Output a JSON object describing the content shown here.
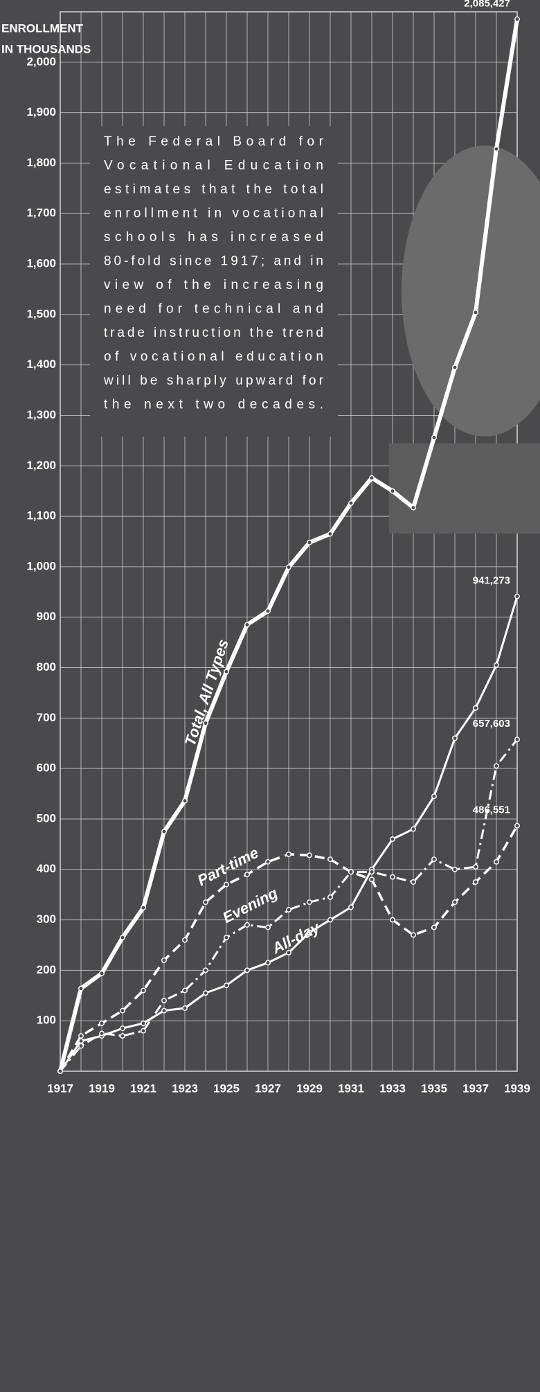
{
  "chart_data": {
    "type": "line",
    "y_label": [
      "ENROLLMENT",
      "IN THOUSANDS"
    ],
    "annotation": [
      "The Federal Board for",
      "Vocational Education",
      "estimates that the total",
      "enrollment in vocational",
      "schools has increased",
      "80-fold since 1917; and in",
      "view of the increasing",
      "need for technical and",
      "trade instruction the trend",
      "of vocational education",
      "will be sharply upward for",
      "the next two decades."
    ],
    "x": [
      1917,
      1918,
      1919,
      1920,
      1921,
      1922,
      1923,
      1924,
      1925,
      1926,
      1927,
      1928,
      1929,
      1930,
      1931,
      1932,
      1933,
      1934,
      1935,
      1936,
      1937,
      1938,
      1939
    ],
    "xlim": [
      1917,
      1939
    ],
    "xticks": [
      1917,
      1919,
      1921,
      1923,
      1925,
      1927,
      1929,
      1931,
      1933,
      1935,
      1937,
      1939
    ],
    "ylim": [
      0,
      2100
    ],
    "yticks": [
      100,
      200,
      300,
      400,
      500,
      600,
      700,
      800,
      900,
      {
        "value": 1000,
        "label": "1,000"
      },
      {
        "value": 1100,
        "label": "1,100"
      },
      {
        "value": 1200,
        "label": "1,200"
      },
      {
        "value": 1300,
        "label": "1,300"
      },
      {
        "value": 1400,
        "label": "1,400"
      },
      {
        "value": 1500,
        "label": "1,500"
      },
      {
        "value": 1600,
        "label": "1,600"
      },
      {
        "value": 1700,
        "label": "1,700"
      },
      {
        "value": 1800,
        "label": "1,800"
      },
      {
        "value": 1900,
        "label": "1,900"
      },
      {
        "value": 2000,
        "label": "2,000"
      }
    ],
    "grid": true,
    "series": [
      {
        "name": "Total, All Types",
        "color": "#ffffff",
        "style": "solid-thick",
        "values": [
          0,
          164,
          194,
          265,
          324,
          475,
          536,
          690,
          792,
          885,
          912,
          999,
          1048,
          1065,
          1126,
          1176,
          1150,
          1117,
          1256,
          1395,
          1504,
          1828,
          2085.427
        ],
        "value_labels": [
          null,
          null,
          null,
          null,
          null,
          null,
          null,
          null,
          null,
          null,
          null,
          null,
          null,
          null,
          null,
          null,
          null,
          null,
          null,
          null,
          null,
          null,
          "2,085,427"
        ]
      },
      {
        "name": "All-day",
        "color": "#ffffff",
        "style": "solid",
        "values": [
          0,
          60,
          70,
          85,
          95,
          120,
          125,
          155,
          170,
          200,
          215,
          235,
          275,
          300,
          325,
          400,
          460,
          480,
          545,
          660,
          720,
          805,
          941.273
        ],
        "value_labels": [
          null,
          null,
          null,
          null,
          null,
          null,
          null,
          null,
          null,
          null,
          null,
          null,
          null,
          null,
          null,
          null,
          null,
          null,
          null,
          null,
          null,
          null,
          "941,273"
        ]
      },
      {
        "name": "Evening",
        "color": "#ffffff",
        "style": "dash-dot",
        "values": [
          0,
          50,
          75,
          70,
          80,
          140,
          160,
          200,
          265,
          290,
          285,
          320,
          335,
          345,
          395,
          395,
          385,
          375,
          420,
          400,
          405,
          605,
          657.603
        ],
        "value_labels": [
          null,
          null,
          null,
          null,
          null,
          null,
          null,
          null,
          null,
          null,
          null,
          null,
          null,
          null,
          null,
          null,
          null,
          null,
          null,
          null,
          null,
          null,
          "657,603"
        ]
      },
      {
        "name": "Part-time",
        "color": "#ffffff",
        "style": "dashed",
        "values": [
          0,
          70,
          95,
          120,
          160,
          220,
          260,
          335,
          370,
          390,
          415,
          430,
          428,
          420,
          395,
          380,
          300,
          270,
          285,
          335,
          375,
          415,
          486.551
        ],
        "value_labels": [
          null,
          null,
          null,
          null,
          null,
          null,
          null,
          null,
          null,
          null,
          null,
          null,
          null,
          null,
          null,
          null,
          null,
          null,
          null,
          null,
          null,
          null,
          "486,551"
        ]
      }
    ]
  }
}
